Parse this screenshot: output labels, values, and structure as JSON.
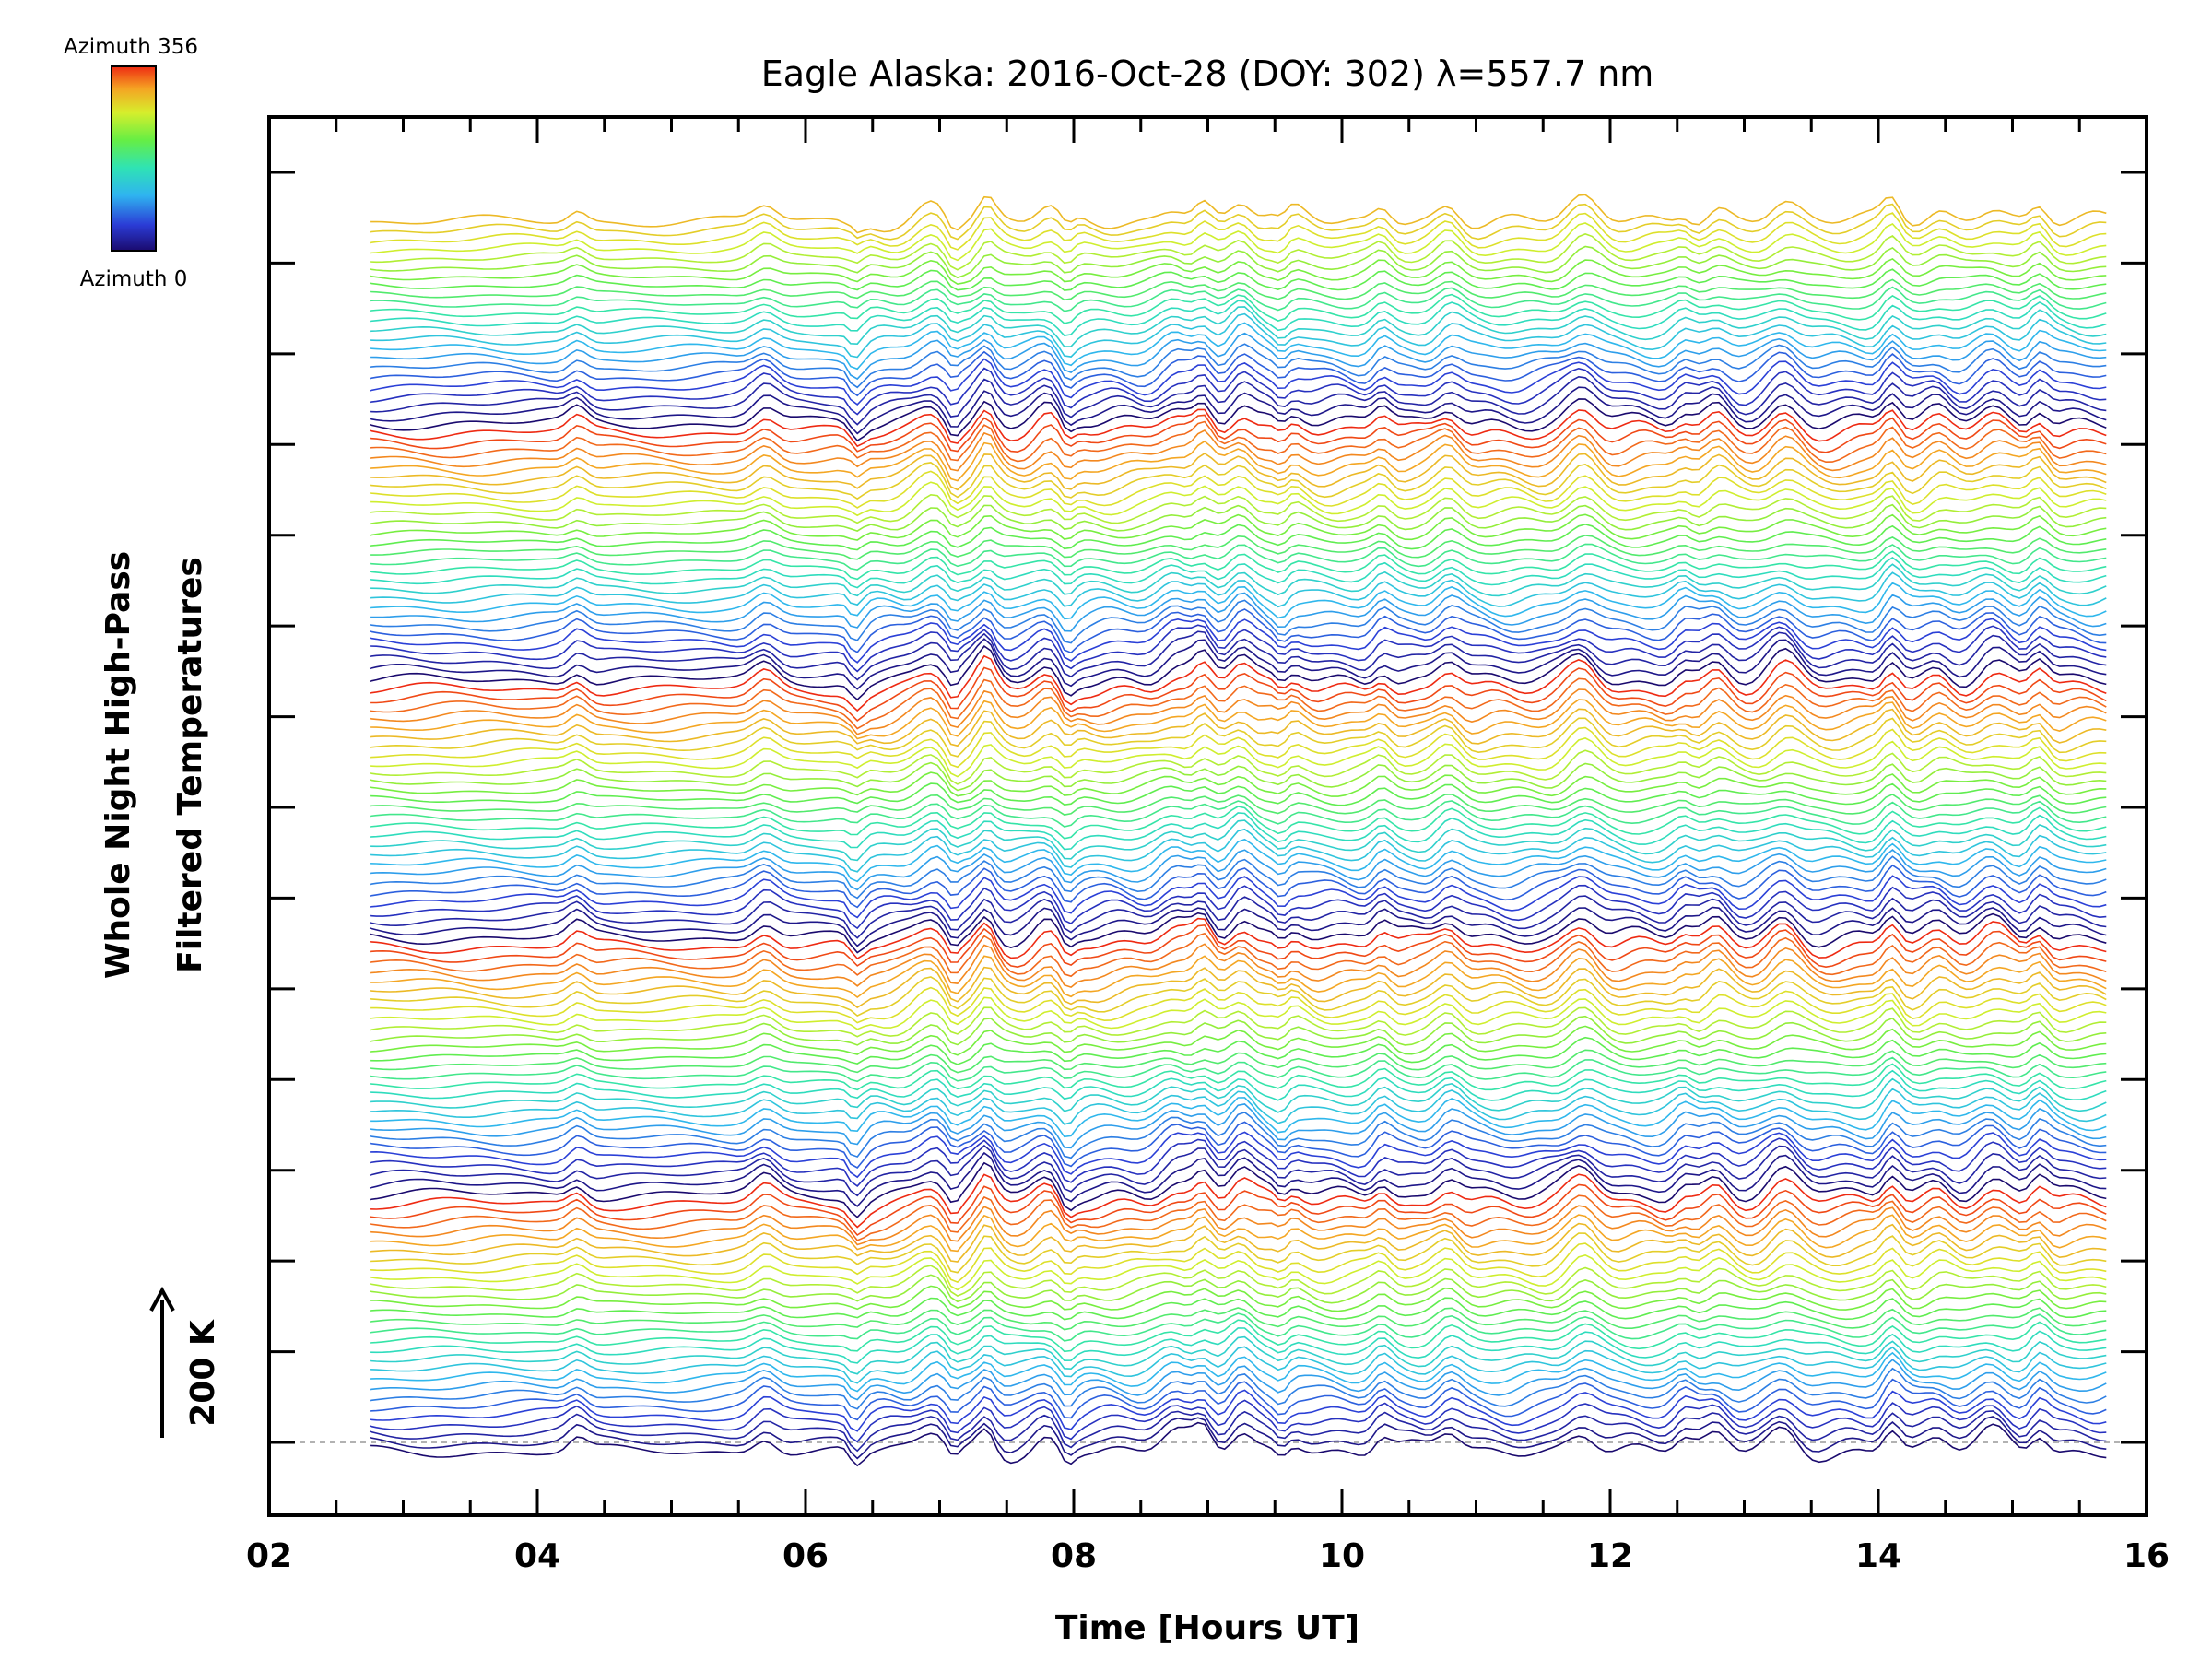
{
  "chart_data": {
    "type": "line",
    "title": "Eagle Alaska: 2016-Oct-28 (DOY: 302) λ=557.7 nm",
    "xlabel": "Time [Hours UT]",
    "ylabel_line1": "Whole Night High-Pass",
    "ylabel_line2": "Filtered Temperatures",
    "xlim": [
      2,
      16
    ],
    "x_ticks": [
      "02",
      "04",
      "06",
      "08",
      "10",
      "12",
      "14",
      "16"
    ],
    "x_tick_values": [
      2,
      4,
      6,
      8,
      10,
      12,
      14,
      16
    ],
    "x_minor_step": 0.5,
    "y_major_tick_count": 15,
    "time_range": [
      2.75,
      15.7
    ],
    "scale_bar": {
      "label": "200 K",
      "arrow": "up"
    },
    "colorbar": {
      "top_label": "Azimuth 356",
      "bottom_label": "Azimuth 0",
      "colormap": "rainbow",
      "colors": [
        "#1a0a6e",
        "#2b3cd6",
        "#2fb4f0",
        "#2fe3b4",
        "#66ee44",
        "#d7ee2c",
        "#f5a323",
        "#ee2a12"
      ]
    },
    "baseline": {
      "style": "dashed",
      "color": "#999999"
    },
    "stack_count": 135,
    "cycle_length": 28,
    "feature_peaks_hours": [
      4.3,
      5.7,
      6.95,
      7.35,
      7.8,
      8.75,
      8.97,
      9.25,
      9.6,
      10.3,
      10.8,
      11.8,
      12.55,
      12.8,
      13.3,
      14.1,
      14.45,
      14.85,
      15.2
    ],
    "feature_dips_hours": [
      6.38,
      7.1,
      7.95,
      9.55
    ],
    "series_note": "Stacked high-pass filtered temperature traces, one per azimuth, colored by azimuth from 0 to 356"
  }
}
